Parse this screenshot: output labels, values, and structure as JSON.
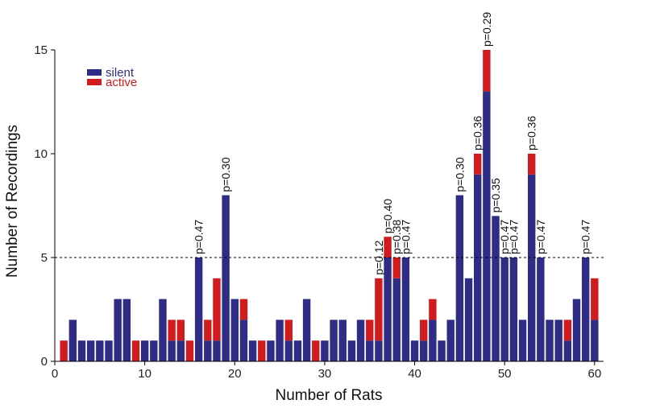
{
  "chart_data": {
    "type": "bar",
    "stacked": true,
    "xlabel": "Number of Rats",
    "ylabel": "Number of Recordings",
    "xlim": [
      0,
      61
    ],
    "ylim": [
      0,
      15
    ],
    "xticks": [
      0,
      10,
      20,
      30,
      40,
      50,
      60
    ],
    "yticks": [
      0,
      5,
      10,
      15
    ],
    "threshold": 5,
    "legend_position": "top-left",
    "x": [
      1,
      2,
      3,
      4,
      5,
      6,
      7,
      8,
      9,
      10,
      11,
      12,
      13,
      14,
      15,
      16,
      17,
      18,
      19,
      20,
      21,
      22,
      23,
      24,
      25,
      26,
      27,
      28,
      29,
      30,
      31,
      32,
      33,
      34,
      35,
      36,
      37,
      38,
      39,
      40,
      41,
      42,
      43,
      44,
      45,
      46,
      47,
      48,
      49,
      50,
      51,
      52,
      53,
      54,
      55,
      56,
      57,
      58,
      59,
      60
    ],
    "series": [
      {
        "name": "silent",
        "color": "#2e2c84",
        "values": [
          0,
          2,
          1,
          1,
          1,
          1,
          3,
          3,
          0,
          1,
          1,
          3,
          1,
          1,
          0,
          5,
          1,
          1,
          8,
          3,
          2,
          1,
          0,
          1,
          2,
          1,
          1,
          3,
          0,
          1,
          2,
          2,
          1,
          2,
          1,
          1,
          5,
          4,
          5,
          1,
          1,
          2,
          1,
          2,
          8,
          4,
          9,
          13,
          7,
          5,
          5,
          2,
          9,
          5,
          2,
          2,
          1,
          3,
          5,
          2
        ]
      },
      {
        "name": "active",
        "color": "#d11c1f",
        "values": [
          1,
          0,
          0,
          0,
          0,
          0,
          0,
          0,
          1,
          0,
          0,
          0,
          1,
          1,
          1,
          0,
          1,
          3,
          0,
          0,
          1,
          0,
          1,
          0,
          0,
          1,
          0,
          0,
          1,
          0,
          0,
          0,
          0,
          0,
          1,
          3,
          1,
          1,
          0,
          0,
          1,
          1,
          0,
          0,
          0,
          0,
          1,
          2,
          0,
          0,
          0,
          0,
          1,
          0,
          0,
          0,
          1,
          0,
          0,
          2
        ]
      }
    ],
    "annotations": [
      {
        "x": 16,
        "text": "p=0.47"
      },
      {
        "x": 19,
        "text": "p=0.30"
      },
      {
        "x": 36,
        "text": "p=0.12"
      },
      {
        "x": 37,
        "text": "p=0.40"
      },
      {
        "x": 38,
        "text": "p=0.38"
      },
      {
        "x": 39,
        "text": "p=0.47"
      },
      {
        "x": 45,
        "text": "p=0.30"
      },
      {
        "x": 47,
        "text": "p=0.36"
      },
      {
        "x": 48,
        "text": "p=0.29"
      },
      {
        "x": 49,
        "text": "p=0.35"
      },
      {
        "x": 50,
        "text": "p=0.47"
      },
      {
        "x": 51,
        "text": "p=0.47"
      },
      {
        "x": 53,
        "text": "p=0.36"
      },
      {
        "x": 54,
        "text": "p=0.47"
      },
      {
        "x": 59,
        "text": "p=0.47"
      }
    ]
  }
}
